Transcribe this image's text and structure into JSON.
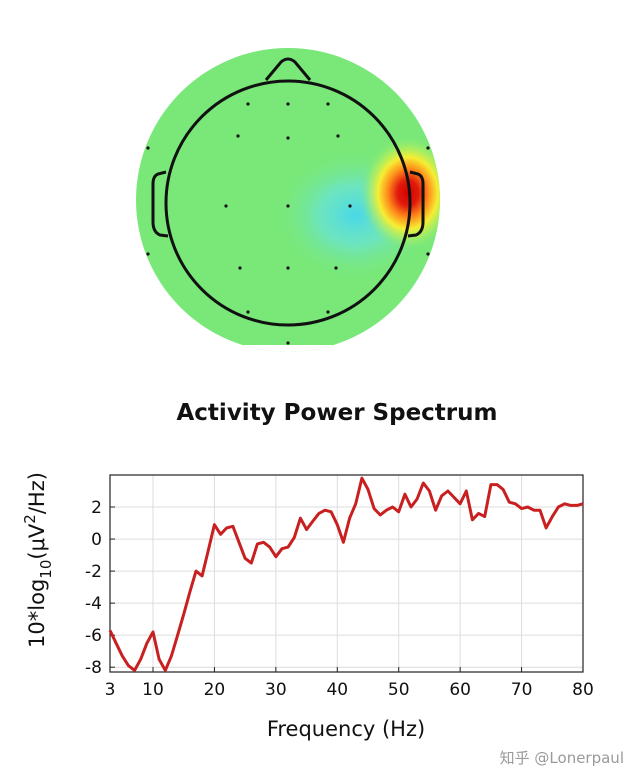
{
  "topoplot": {
    "background_color": "#79e879",
    "hot_color": "#d50000",
    "cold_color": "#4ad8e8"
  },
  "watermark": "知乎 @Lonerpaul",
  "chart_data": {
    "type": "line",
    "title": "Activity Power Spectrum",
    "xlabel": "Frequency (Hz)",
    "ylabel_prefix": "10*log",
    "ylabel_sub": "10",
    "ylabel_mid": "(μV",
    "ylabel_sup": "2",
    "ylabel_suffix": "/Hz)",
    "xlim": [
      3,
      80
    ],
    "ylim": [
      -8.3,
      4
    ],
    "xticks": [
      3,
      10,
      20,
      30,
      40,
      50,
      60,
      70,
      80
    ],
    "yticks": [
      -8,
      -6,
      -4,
      -2,
      0,
      2
    ],
    "grid": true,
    "series": [
      {
        "color": "#c82020",
        "x": [
          3,
          4,
          5,
          6,
          7,
          8,
          9,
          10,
          11,
          12,
          13,
          14,
          15,
          16,
          17,
          18,
          19,
          20,
          21,
          22,
          23,
          24,
          25,
          26,
          27,
          28,
          29,
          30,
          31,
          32,
          33,
          34,
          35,
          36,
          37,
          38,
          39,
          40,
          41,
          42,
          43,
          44,
          45,
          46,
          47,
          48,
          49,
          50,
          51,
          52,
          53,
          54,
          55,
          56,
          57,
          58,
          59,
          60,
          61,
          62,
          63,
          64,
          65,
          66,
          67,
          68,
          69,
          70,
          71,
          72,
          73,
          74,
          75,
          76,
          77,
          78,
          79,
          80
        ],
        "y": [
          -5.7,
          -6.5,
          -7.3,
          -7.9,
          -8.2,
          -7.5,
          -6.5,
          -5.8,
          -7.5,
          -8.2,
          -7.3,
          -6.0,
          -4.7,
          -3.3,
          -2.0,
          -2.3,
          -0.7,
          0.9,
          0.3,
          0.7,
          0.8,
          -0.2,
          -1.2,
          -1.5,
          -0.3,
          -0.2,
          -0.5,
          -1.1,
          -0.6,
          -0.5,
          0.1,
          1.3,
          0.6,
          1.1,
          1.6,
          1.8,
          1.7,
          0.9,
          -0.2,
          1.3,
          2.2,
          3.8,
          3.1,
          1.9,
          1.5,
          1.8,
          2.0,
          1.7,
          2.8,
          2.0,
          2.5,
          3.5,
          3.0,
          1.8,
          2.7,
          3.0,
          2.6,
          2.2,
          3.0,
          1.2,
          1.6,
          1.4,
          3.4,
          3.4,
          3.1,
          2.3,
          2.2,
          1.9,
          2.0,
          1.8,
          1.8,
          0.7,
          1.4,
          2.0,
          2.2,
          2.1,
          2.1,
          2.2
        ]
      }
    ]
  }
}
